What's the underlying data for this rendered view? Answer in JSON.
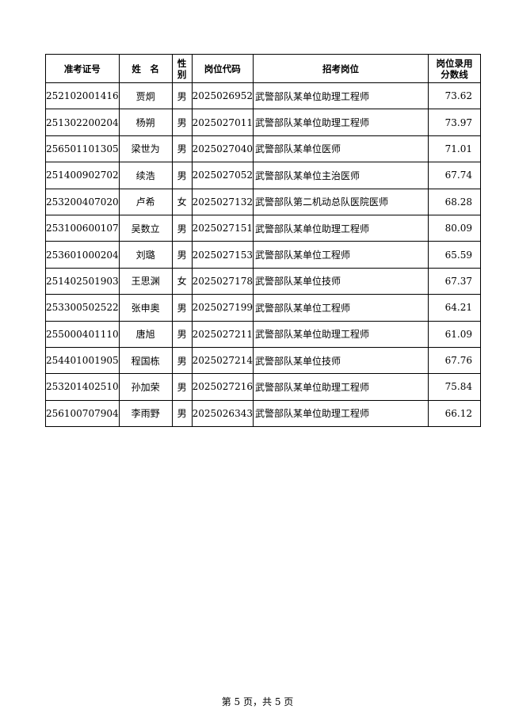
{
  "table": {
    "headers": [
      [
        "准考证号"
      ],
      [
        "姓　名"
      ],
      [
        "性",
        "别"
      ],
      [
        "岗位代码"
      ],
      [
        "招考岗位"
      ],
      [
        "岗位录用",
        "分数线"
      ]
    ],
    "rows": [
      [
        "252102001416",
        "贾炯",
        "男",
        "2025026952",
        "武警部队某单位助理工程师",
        "73.62"
      ],
      [
        "251302200204",
        "杨朔",
        "男",
        "2025027011",
        "武警部队某单位助理工程师",
        "73.97"
      ],
      [
        "256501101305",
        "梁世为",
        "男",
        "2025027040",
        "武警部队某单位医师",
        "71.01"
      ],
      [
        "251400902702",
        "续浩",
        "男",
        "2025027052",
        "武警部队某单位主治医师",
        "67.74"
      ],
      [
        "253200407020",
        "卢希",
        "女",
        "2025027132",
        "武警部队第二机动总队医院医师",
        "68.28"
      ],
      [
        "253100600107",
        "吴数立",
        "男",
        "2025027151",
        "武警部队某单位助理工程师",
        "80.09"
      ],
      [
        "253601000204",
        "刘璐",
        "男",
        "2025027153",
        "武警部队某单位工程师",
        "65.59"
      ],
      [
        "251402501903",
        "王思渊",
        "女",
        "2025027178",
        "武警部队某单位技师",
        "67.37"
      ],
      [
        "253300502522",
        "张申奥",
        "男",
        "2025027199",
        "武警部队某单位工程师",
        "64.21"
      ],
      [
        "255000401110",
        "唐旭",
        "男",
        "2025027211",
        "武警部队某单位助理工程师",
        "61.09"
      ],
      [
        "254401001905",
        "程国栋",
        "男",
        "2025027214",
        "武警部队某单位技师",
        "67.76"
      ],
      [
        "253201402510",
        "孙加荣",
        "男",
        "2025027216",
        "武警部队某单位助理工程师",
        "75.84"
      ],
      [
        "256100707904",
        "李雨野",
        "男",
        "2025026343",
        "武警部队某单位助理工程师",
        "66.12"
      ]
    ]
  },
  "footer": "第 5 页，共 5 页"
}
